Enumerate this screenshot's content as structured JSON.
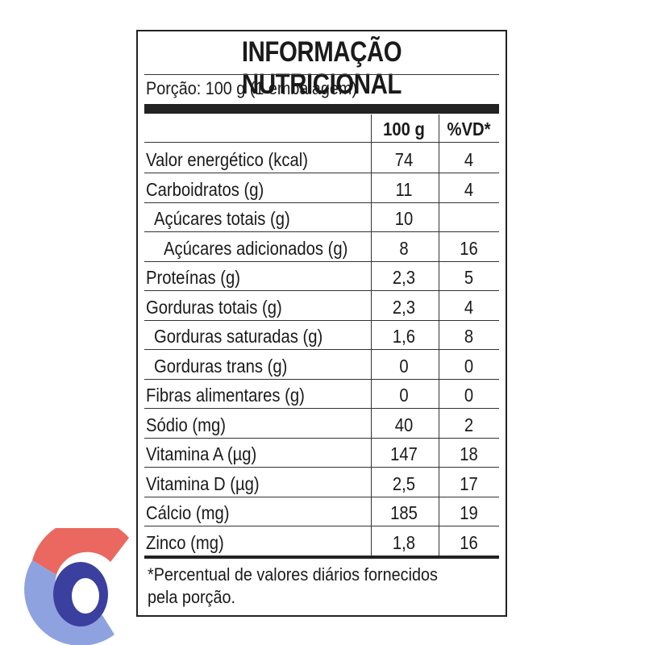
{
  "panel": {
    "title": "INFORMAÇÃO NUTRICIONAL",
    "portion": "Porção: 100 g (1 embalagem)",
    "headers": {
      "col1": "100 g",
      "col2": "%VD*"
    },
    "rows": [
      {
        "label": "Valor energético (kcal)",
        "v1": "74",
        "v2": "4"
      },
      {
        "label": "Carboidratos (g)",
        "v1": "11",
        "v2": "4"
      },
      {
        "label": "Açúcares totais (g)",
        "v1": "10",
        "v2": ""
      },
      {
        "label": "Açúcares adicionados (g)",
        "v1": "8",
        "v2": "16"
      },
      {
        "label": "Proteínas (g)",
        "v1": "2,3",
        "v2": "5"
      },
      {
        "label": "Gorduras totais (g)",
        "v1": "2,3",
        "v2": "4"
      },
      {
        "label": "Gorduras saturadas (g)",
        "v1": "1,6",
        "v2": "8"
      },
      {
        "label": "Gorduras trans (g)",
        "v1": "0",
        "v2": "0"
      },
      {
        "label": "Fibras alimentares (g)",
        "v1": "0",
        "v2": "0"
      },
      {
        "label": "Sódio (mg)",
        "v1": "40",
        "v2": "2"
      },
      {
        "label": "Vitamina A (µg)",
        "v1": "147",
        "v2": "18"
      },
      {
        "label": "Vitamina D (µg)",
        "v1": "2,5",
        "v2": "17"
      },
      {
        "label": "Cálcio (mg)",
        "v1": "185",
        "v2": "19"
      },
      {
        "label": "Zinco (mg)",
        "v1": "1,8",
        "v2": "16"
      }
    ],
    "footnote_line1": "*Percentual de valores diários fornecidos",
    "footnote_line2": "pela porção."
  },
  "logo": {
    "name": "brand-logo",
    "colors": {
      "red": "#e8584f",
      "blue": "#3b3f9e",
      "light_blue": "#8fa2e0"
    }
  }
}
